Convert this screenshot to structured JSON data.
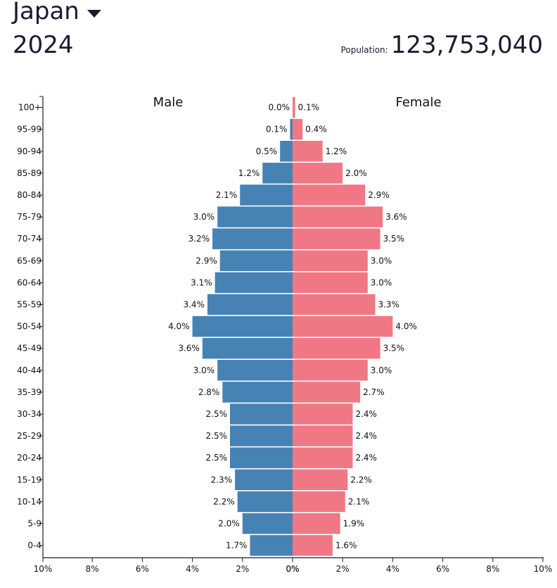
{
  "header": {
    "country": "Japan",
    "year": "2024",
    "population_label": "Population:",
    "population_value": "123,753,040"
  },
  "colors": {
    "male": "#4682b4",
    "female": "#f07884",
    "axis": "#1b1b2f"
  },
  "icons": {
    "dropdown": "chevron-down-icon"
  },
  "chart_data": {
    "type": "bar",
    "orientation": "horizontal-population-pyramid",
    "categories": [
      "100+",
      "95-99",
      "90-94",
      "85-89",
      "80-84",
      "75-79",
      "70-74",
      "65-69",
      "60-64",
      "55-59",
      "50-54",
      "45-49",
      "40-44",
      "35-39",
      "30-34",
      "25-29",
      "20-24",
      "15-19",
      "10-14",
      "5-9",
      "0-4"
    ],
    "series": [
      {
        "name": "Male",
        "values": [
          0.0,
          0.1,
          0.5,
          1.2,
          2.1,
          3.0,
          3.2,
          2.9,
          3.1,
          3.4,
          4.0,
          3.6,
          3.0,
          2.8,
          2.5,
          2.5,
          2.5,
          2.3,
          2.2,
          2.0,
          1.7
        ],
        "labels": [
          "0.0%",
          "0.1%",
          "0.5%",
          "1.2%",
          "2.1%",
          "3.0%",
          "3.2%",
          "2.9%",
          "3.1%",
          "3.4%",
          "4.0%",
          "3.6%",
          "3.0%",
          "2.8%",
          "2.5%",
          "2.5%",
          "2.5%",
          "2.3%",
          "2.2%",
          "2.0%",
          "1.7%"
        ]
      },
      {
        "name": "Female",
        "values": [
          0.1,
          0.4,
          1.2,
          2.0,
          2.9,
          3.6,
          3.5,
          3.0,
          3.0,
          3.3,
          4.0,
          3.5,
          3.0,
          2.7,
          2.4,
          2.4,
          2.4,
          2.2,
          2.1,
          1.9,
          1.6
        ],
        "labels": [
          "0.1%",
          "0.4%",
          "1.2%",
          "2.0%",
          "2.9%",
          "3.6%",
          "3.5%",
          "3.0%",
          "3.0%",
          "3.3%",
          "4.0%",
          "3.5%",
          "3.0%",
          "2.7%",
          "2.4%",
          "2.4%",
          "2.4%",
          "2.2%",
          "2.1%",
          "1.9%",
          "1.6%"
        ]
      }
    ],
    "xlim": [
      -10,
      10
    ],
    "x_ticks": [
      "10%",
      "8%",
      "6%",
      "4%",
      "2%",
      "0%",
      "0%",
      "2%",
      "4%",
      "6%",
      "8%",
      "10%"
    ],
    "x_tick_values": [
      -10,
      -8,
      -6,
      -4,
      -2,
      0,
      0,
      2,
      4,
      6,
      8,
      10
    ],
    "grid": false,
    "legend": "top"
  }
}
